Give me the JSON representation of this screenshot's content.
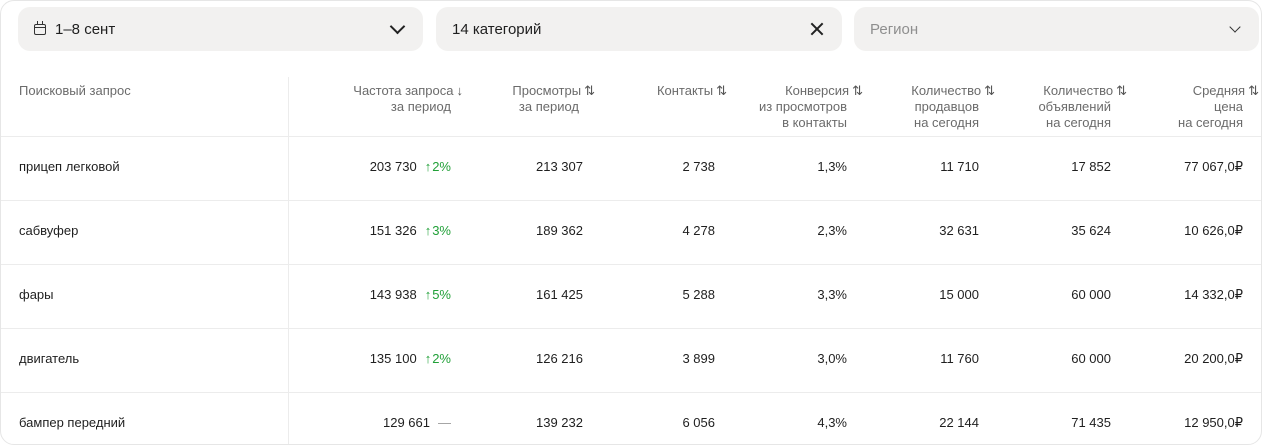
{
  "filters": {
    "date_label": "1–8 сент",
    "category_label": "14 категорий",
    "region_placeholder": "Регион"
  },
  "table": {
    "headers": {
      "query": "Поисковый запрос",
      "freq": [
        "Частота запроса",
        "за период"
      ],
      "views": [
        "Просмотры",
        "за период"
      ],
      "contacts": [
        "Контакты"
      ],
      "conv": [
        "Конверсия",
        "из просмотров",
        "в контакты"
      ],
      "sellers": [
        "Количество",
        "продавцов",
        "на сегодня"
      ],
      "ads": [
        "Количество",
        "объявлений",
        "на сегодня"
      ],
      "price": [
        "Средняя",
        "цена",
        "на сегодня"
      ]
    },
    "rows": [
      {
        "query": "прицеп легковой",
        "freq": "203 730",
        "trend": "2%",
        "views": "213 307",
        "contacts": "2 738",
        "conv": "1,3%",
        "sellers": "11 710",
        "ads": "17 852",
        "price": "77 067,0₽"
      },
      {
        "query": "сабвуфер",
        "freq": "151 326",
        "trend": "3%",
        "views": "189 362",
        "contacts": "4 278",
        "conv": "2,3%",
        "sellers": "32 631",
        "ads": "35 624",
        "price": "10 626,0₽"
      },
      {
        "query": "фары",
        "freq": "143 938",
        "trend": "5%",
        "views": "161 425",
        "contacts": "5 288",
        "conv": "3,3%",
        "sellers": "15 000",
        "ads": "60 000",
        "price": "14 332,0₽"
      },
      {
        "query": "двигатель",
        "freq": "135 100",
        "trend": "2%",
        "views": "126 216",
        "contacts": "3 899",
        "conv": "3,0%",
        "sellers": "11 760",
        "ads": "60 000",
        "price": "20 200,0₽"
      },
      {
        "query": "бампер передний",
        "freq": "129 661",
        "trend": "—",
        "views": "139 232",
        "contacts": "6 056",
        "conv": "4,3%",
        "sellers": "22 144",
        "ads": "71 435",
        "price": "12 950,0₽"
      }
    ],
    "colors": {
      "trend_up": "#21a038"
    }
  }
}
